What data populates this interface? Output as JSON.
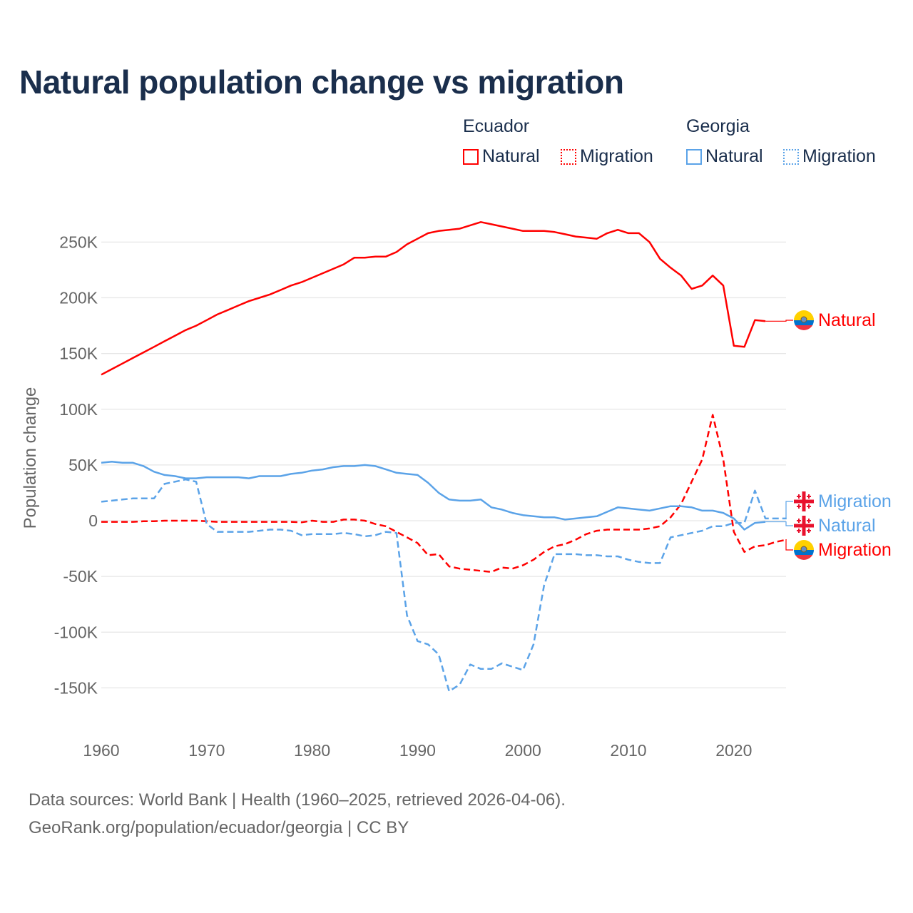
{
  "title": "Natural population change vs migration",
  "legend": {
    "groups": [
      {
        "name": "Ecuador",
        "items": [
          "Natural",
          "Migration"
        ],
        "color": "#ff0000"
      },
      {
        "name": "Georgia",
        "items": [
          "Natural",
          "Migration"
        ],
        "color": "#5ba3e8"
      }
    ]
  },
  "footer": {
    "line1": "Data sources: World Bank | Health (1960–2025, retrieved 2026-04-06).",
    "line2": "GeoRank.org/population/ecuador/georgia | CC BY"
  },
  "chart_data": {
    "type": "line",
    "title": "Natural population change vs migration",
    "xlabel": "",
    "ylabel": "Population change",
    "xlim": [
      1960,
      2025
    ],
    "ylim": [
      -170000,
      275000
    ],
    "grid": true,
    "legend_placement": "top-right",
    "x_ticks": [
      1960,
      1970,
      1980,
      1990,
      2000,
      2010,
      2020
    ],
    "y_ticks": [
      {
        "value": 250000,
        "label": "250K"
      },
      {
        "value": 200000,
        "label": "200K"
      },
      {
        "value": 150000,
        "label": "150K"
      },
      {
        "value": 100000,
        "label": "100K"
      },
      {
        "value": 50000,
        "label": "50K"
      },
      {
        "value": 0,
        "label": "0"
      },
      {
        "value": -50000,
        "label": "-50K"
      },
      {
        "value": -100000,
        "label": "-100K"
      },
      {
        "value": -150000,
        "label": "-150K"
      }
    ],
    "series": [
      {
        "name": "Ecuador Natural",
        "end_label": "Natural",
        "country": "Ecuador",
        "color": "#ff0000",
        "dash": false,
        "start": 1960,
        "values_k": [
          131,
          136,
          141,
          146,
          151,
          156,
          161,
          166,
          171,
          175,
          180,
          185,
          189,
          193,
          197,
          200,
          203,
          207,
          211,
          214,
          218,
          222,
          226,
          230,
          236,
          236,
          237,
          237,
          241,
          248,
          253,
          258,
          260,
          261,
          262,
          265,
          268,
          266,
          264,
          262,
          260,
          260,
          260,
          259,
          257,
          255,
          254,
          253,
          258,
          261,
          258,
          258,
          250,
          235,
          227,
          220,
          208,
          211,
          220,
          211,
          157,
          156,
          180,
          179
        ]
      },
      {
        "name": "Ecuador Migration",
        "end_label": "Migration",
        "country": "Ecuador",
        "color": "#ff0000",
        "dash": true,
        "start": 1960,
        "values_k": [
          -1,
          -1,
          -1,
          -1,
          -0.5,
          -0.5,
          0,
          0,
          0,
          0,
          -0.5,
          -1,
          -1,
          -1,
          -1,
          -1,
          -1,
          -1,
          -1,
          -1.5,
          0,
          -1,
          -1,
          1,
          1,
          0,
          -3,
          -5,
          -10,
          -15,
          -20,
          -31,
          -30,
          -41,
          -43,
          -44,
          -45,
          -46,
          -42,
          -43,
          -40,
          -35,
          -28,
          -23,
          -21,
          -17,
          -12,
          -9,
          -8,
          -8,
          -8,
          -8,
          -7,
          -5,
          3,
          15,
          35,
          55,
          95,
          55,
          -10,
          -28,
          -23,
          -22,
          -19,
          -17
        ]
      },
      {
        "name": "Georgia Natural",
        "end_label": "Natural",
        "country": "Georgia",
        "color": "#5ba3e8",
        "dash": false,
        "start": 1960,
        "values_k": [
          52,
          53,
          52,
          52,
          49,
          44,
          41,
          40,
          38,
          38,
          39,
          39,
          39,
          39,
          38,
          40,
          40,
          40,
          42,
          43,
          45,
          46,
          48,
          49,
          49,
          50,
          49,
          46,
          43,
          42,
          41,
          34,
          25,
          19,
          18,
          18,
          19,
          12,
          10,
          7,
          5,
          4,
          3,
          3,
          1,
          2,
          3,
          4,
          8,
          12,
          11,
          10,
          9,
          11,
          13,
          13,
          12,
          9,
          9,
          7,
          2,
          -8,
          -2,
          -1
        ]
      },
      {
        "name": "Georgia Migration",
        "end_label": "Migration",
        "country": "Georgia",
        "color": "#5ba3e8",
        "dash": true,
        "start": 1960,
        "values_k": [
          17,
          18,
          19,
          20,
          20,
          20,
          33,
          35,
          37,
          35,
          -3,
          -10,
          -10,
          -10,
          -10,
          -9,
          -8,
          -8,
          -9,
          -13,
          -12,
          -12,
          -12,
          -11,
          -12,
          -14,
          -13,
          -10,
          -11,
          -85,
          -108,
          -111,
          -120,
          -153,
          -147,
          -129,
          -133,
          -133,
          -128,
          -131,
          -134,
          -111,
          -58,
          -30,
          -30,
          -30,
          -31,
          -31,
          -32,
          -32,
          -35,
          -37,
          -38,
          -38,
          -15,
          -13,
          -11,
          -9,
          -5,
          -5,
          -2,
          -2,
          27,
          2,
          2,
          2
        ]
      }
    ]
  }
}
